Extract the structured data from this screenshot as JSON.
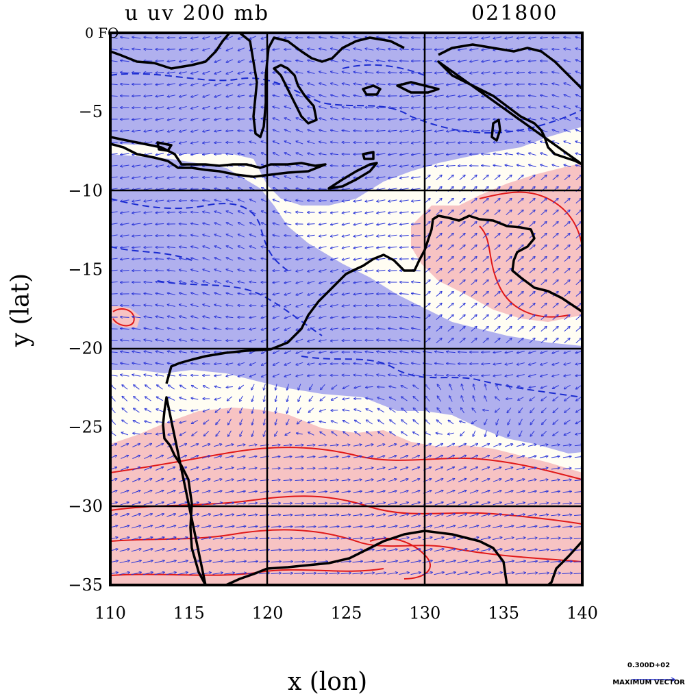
{
  "title": {
    "left": "u uv 200 mb",
    "right": "021800",
    "corner_label": "0 FO"
  },
  "x_axis": {
    "label": "x (lon)",
    "ticks": [
      "110",
      "115",
      "120",
      "125",
      "130",
      "135",
      "140"
    ],
    "range": [
      110,
      140
    ]
  },
  "y_axis": {
    "label": "y (lat)",
    "ticks": [
      "0",
      "−5",
      "−10",
      "−15",
      "−20",
      "−25",
      "−30",
      "−35"
    ],
    "range": [
      -35,
      0
    ]
  },
  "legend": {
    "value": "0.300D+02",
    "caption": "MAXIMUM VECTOR"
  },
  "colors": {
    "negative_fill": "#b0b0ee",
    "positive_fill": "#f7c3c3",
    "background_fill": "#fffdf3",
    "negative_contour": "#1a2bd0",
    "positive_contour": "#e01818",
    "vector": "#2a35d8",
    "coastline": "#000000"
  },
  "chart_data": {
    "type": "map",
    "field": "u wind component, 200 mb",
    "overlay": "uv wind vectors",
    "lon_range": [
      110,
      140
    ],
    "lat_range": [
      -35,
      0
    ],
    "grid_lon": [
      120,
      130
    ],
    "grid_lat": [
      -10,
      -20,
      -30
    ],
    "regions": [
      {
        "name": "easterly band north",
        "sign": "negative",
        "lat_range": [
          -20,
          0
        ]
      },
      {
        "name": "easterly band central",
        "sign": "negative",
        "lat_range": [
          -27,
          -18
        ]
      },
      {
        "name": "westerly jet south",
        "sign": "positive",
        "lat_range": [
          -35,
          -25
        ]
      },
      {
        "name": "westerly patch northeast",
        "sign": "positive",
        "lat_range": [
          -18,
          -9
        ]
      }
    ]
  }
}
